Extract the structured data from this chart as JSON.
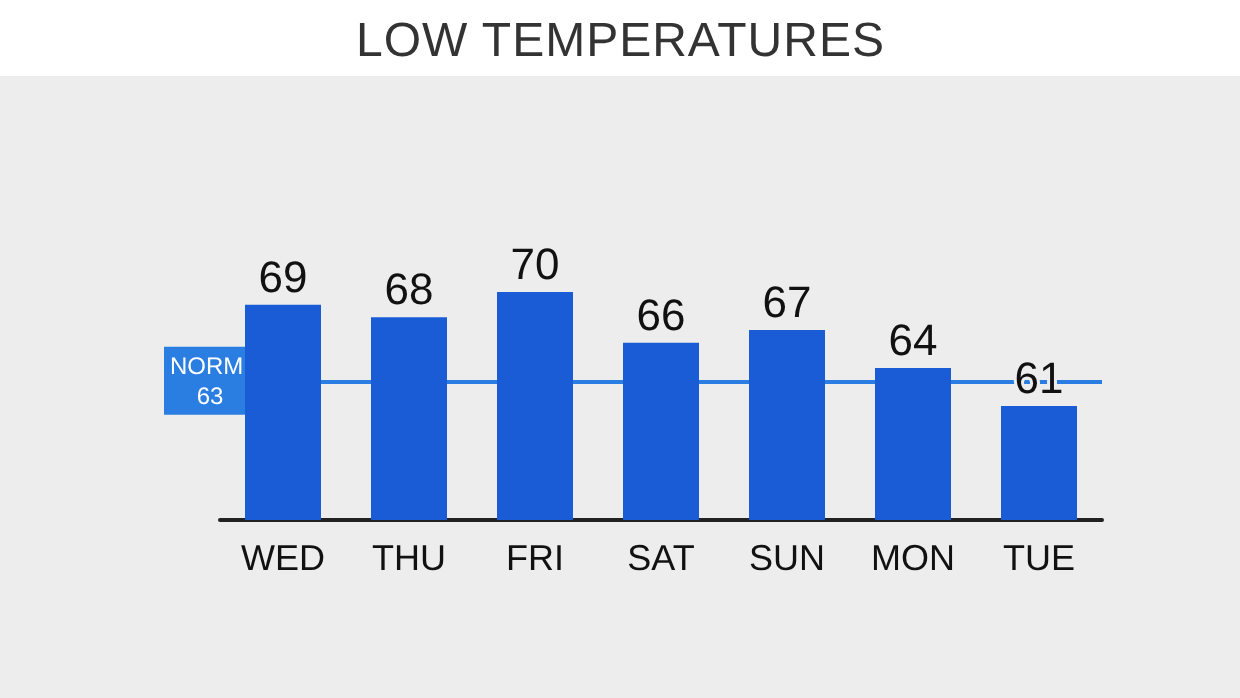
{
  "chart_data": {
    "type": "bar",
    "title": "LOW TEMPERATURES",
    "categories": [
      "WED",
      "THU",
      "FRI",
      "SAT",
      "SUN",
      "MON",
      "TUE"
    ],
    "values": [
      69,
      68,
      70,
      66,
      67,
      64,
      61
    ],
    "color": "#1a5cd6",
    "ylim": [
      52,
      70
    ],
    "tick_labels": "x",
    "data_labels": true,
    "grid": false,
    "ref_lines": [
      {
        "axis": "y",
        "value": 63,
        "label": "NORM 63",
        "color": "#2a7de1"
      }
    ]
  }
}
